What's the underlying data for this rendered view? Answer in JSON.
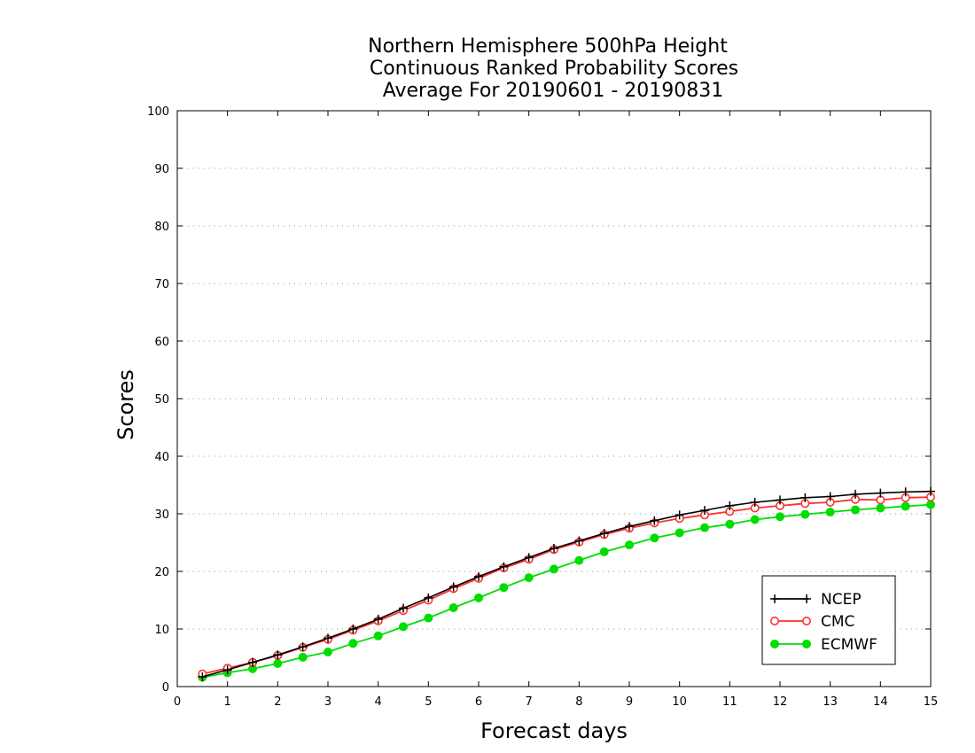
{
  "chart_data": {
    "type": "line",
    "title": [
      "Northern Hemisphere 500hPa Height",
      "Continuous Ranked Probability Scores",
      "Average For 20190601 - 20190831"
    ],
    "xlabel": "Forecast days",
    "ylabel": "Scores",
    "xlim": [
      0,
      15
    ],
    "ylim": [
      0,
      100
    ],
    "x_ticks": [
      0,
      1,
      2,
      3,
      4,
      5,
      6,
      7,
      8,
      9,
      10,
      11,
      12,
      13,
      14,
      15
    ],
    "y_ticks": [
      0,
      10,
      20,
      30,
      40,
      50,
      60,
      70,
      80,
      90,
      100
    ],
    "grid": "horizontal-dotted",
    "legend_position": "bottom-right",
    "x": [
      0.5,
      1,
      1.5,
      2,
      2.5,
      3,
      3.5,
      4,
      4.5,
      5,
      5.5,
      6,
      6.5,
      7,
      7.5,
      8,
      8.5,
      9,
      9.5,
      10,
      10.5,
      11,
      11.5,
      12,
      12.5,
      13,
      13.5,
      14,
      14.5,
      15
    ],
    "series": [
      {
        "name": "NCEP",
        "color": "#000000",
        "marker": "plus",
        "values": [
          1.7,
          2.9,
          4.2,
          5.5,
          6.9,
          8.4,
          10.0,
          11.7,
          13.6,
          15.4,
          17.3,
          19.1,
          20.8,
          22.4,
          24.0,
          25.3,
          26.6,
          27.8,
          28.8,
          29.8,
          30.6,
          31.4,
          32.0,
          32.4,
          32.8,
          33.0,
          33.4,
          33.6,
          33.8,
          33.9
        ]
      },
      {
        "name": "CMC",
        "color": "#ff3030",
        "marker": "open-circle",
        "values": [
          2.2,
          3.2,
          4.2,
          5.4,
          6.8,
          8.2,
          9.8,
          11.4,
          13.2,
          15.0,
          17.0,
          18.8,
          20.6,
          22.1,
          23.8,
          25.1,
          26.4,
          27.5,
          28.4,
          29.2,
          29.8,
          30.4,
          31.0,
          31.4,
          31.8,
          32.0,
          32.5,
          32.4,
          32.8,
          32.9
        ]
      },
      {
        "name": "ECMWF",
        "color": "#00dd00",
        "marker": "filled-circle",
        "values": [
          1.6,
          2.4,
          3.1,
          4.0,
          5.1,
          6.0,
          7.5,
          8.8,
          10.4,
          11.9,
          13.7,
          15.4,
          17.2,
          18.9,
          20.4,
          21.9,
          23.4,
          24.6,
          25.8,
          26.7,
          27.6,
          28.2,
          29.0,
          29.5,
          29.9,
          30.3,
          30.7,
          31.0,
          31.3,
          31.6
        ]
      }
    ]
  }
}
